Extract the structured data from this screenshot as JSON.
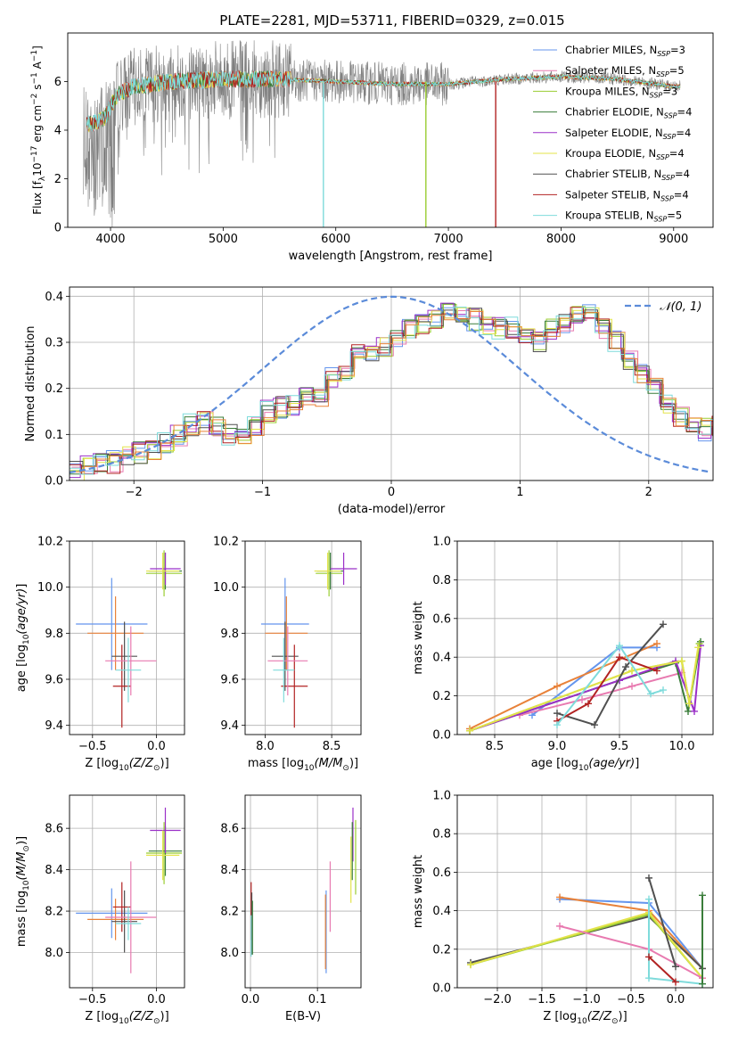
{
  "figure_title": "PLATE=2281, MJD=53711, FIBERID=0329, z=0.015",
  "colors": {
    "Chabrier MILES": "#6495ed",
    "Salpeter MILES": "#e87ab0",
    "Kroupa MILES": "#9acd32",
    "Chabrier ELODIE": "#3a7d3a",
    "Salpeter ELODIE": "#9b30c8",
    "Kroupa ELODIE": "#e3e34a",
    "Chabrier STELIB": "#505050",
    "Salpeter STELIB": "#b22222",
    "Kroupa STELIB": "#7fdbdb",
    "Kroupa MILES (orange)": "#e8823a",
    "data": "#808080",
    "gauss": "#5b8bd9"
  },
  "chart_data": [
    {
      "id": "spectrum",
      "type": "line",
      "title": "PLATE=2281, MJD=53711, FIBERID=0329, z=0.015",
      "xlabel": "wavelength [Angstrom, rest frame]",
      "ylabel_parts": {
        "a": "Flux [f",
        "b": "λ",
        "c": "10",
        "d": "−17",
        "e": " erg cm",
        "f": "−2",
        "g": " s",
        "h": "−1",
        "i": " A",
        "j": "−1",
        "k": "]"
      },
      "xlim": [
        3620,
        9350
      ],
      "ylim": [
        0,
        8
      ],
      "xticks": [
        4000,
        5000,
        6000,
        7000,
        8000,
        9000
      ],
      "yticks": [
        0,
        2,
        4,
        6
      ],
      "grid": false,
      "legend_position": "top-right",
      "legend": [
        {
          "name": "Chabrier MILES",
          "n": "3",
          "color": "#6495ed"
        },
        {
          "name": "Salpeter MILES",
          "n": "5",
          "color": "#e87ab0"
        },
        {
          "name": "Kroupa MILES",
          "n": "3",
          "color": "#9acd32"
        },
        {
          "name": "Chabrier ELODIE",
          "n": "4",
          "color": "#3a7d3a"
        },
        {
          "name": "Salpeter ELODIE",
          "n": "4",
          "color": "#9b30c8"
        },
        {
          "name": "Kroupa ELODIE",
          "n": "4",
          "color": "#e3e34a"
        },
        {
          "name": "Chabrier STELIB",
          "n": "4",
          "color": "#505050"
        },
        {
          "name": "Salpeter STELIB",
          "n": "4",
          "color": "#b22222"
        },
        {
          "name": "Kroupa STELIB",
          "n": "5",
          "color": "#7fdbdb"
        }
      ],
      "legend_sub": "SSP",
      "continuum_model": [
        [
          3760,
          4.2
        ],
        [
          3850,
          4.3
        ],
        [
          3950,
          4.5
        ],
        [
          4050,
          5.4
        ],
        [
          4200,
          5.8
        ],
        [
          4500,
          6.0
        ],
        [
          5000,
          6.1
        ],
        [
          5500,
          6.1
        ],
        [
          6000,
          6.0
        ],
        [
          6500,
          5.9
        ],
        [
          7000,
          5.9
        ],
        [
          7500,
          6.1
        ],
        [
          8000,
          6.2
        ],
        [
          8500,
          6.1
        ],
        [
          9000,
          5.8
        ],
        [
          9060,
          5.8
        ]
      ],
      "sky_drops": [
        {
          "x": 5890,
          "color": "#7fdbdb"
        },
        {
          "x": 6800,
          "color": "#9acd32"
        },
        {
          "x": 7420,
          "color": "#b22222"
        }
      ]
    },
    {
      "id": "residual_hist",
      "type": "bar",
      "xlabel": "(data-model)/error",
      "ylabel": "Normed distribution",
      "xlim": [
        -2.5,
        2.5
      ],
      "ylim": [
        0,
        0.42
      ],
      "xticks": [
        -2,
        -1,
        0,
        1,
        2
      ],
      "yticks": [
        0.0,
        0.1,
        0.2,
        0.3,
        0.4
      ],
      "grid": true,
      "legend_position": "top-right",
      "legend": [
        {
          "name": "𝒩(0, 1)",
          "style": "dashed",
          "color": "#5b8bd9"
        }
      ],
      "bin_width": 0.1,
      "base_profile": [
        0.02,
        0.03,
        0.035,
        0.04,
        0.05,
        0.06,
        0.07,
        0.08,
        0.1,
        0.12,
        0.13,
        0.12,
        0.1,
        0.1,
        0.12,
        0.15,
        0.16,
        0.16,
        0.18,
        0.18,
        0.22,
        0.24,
        0.27,
        0.28,
        0.29,
        0.31,
        0.33,
        0.34,
        0.35,
        0.37,
        0.36,
        0.35,
        0.34,
        0.33,
        0.33,
        0.32,
        0.3,
        0.33,
        0.34,
        0.36,
        0.37,
        0.33,
        0.3,
        0.26,
        0.23,
        0.2,
        0.17,
        0.14,
        0.12,
        0.11,
        0.12,
        0.13,
        0.12,
        0.1,
        0.09,
        0.09,
        0.08,
        0.07,
        0.05,
        0.04
      ],
      "profile_x_start": -2.5
    },
    {
      "id": "age_vs_Z",
      "type": "scatter",
      "xlabel": "Z [log10(Z/Z⊙)]",
      "ylabel": "age  [log10(age/yr)]",
      "xlim": [
        -0.68,
        0.22
      ],
      "ylim": [
        9.36,
        10.2
      ],
      "xticks": [
        -0.5,
        0.0
      ],
      "yticks": [
        9.4,
        9.6,
        9.8,
        10.0,
        10.2
      ],
      "grid": true,
      "points": [
        {
          "color": "#6495ed",
          "x": -0.35,
          "y": 9.84,
          "xerr": 0.28,
          "yerr": 0.2
        },
        {
          "color": "#e8823a",
          "x": -0.32,
          "y": 9.8,
          "xerr": 0.22,
          "yerr": 0.16
        },
        {
          "color": "#9acd32",
          "x": 0.06,
          "y": 10.06,
          "xerr": 0.14,
          "yerr": 0.1
        },
        {
          "color": "#3a7d3a",
          "x": 0.07,
          "y": 10.07,
          "xerr": 0.13,
          "yerr": 0.08
        },
        {
          "color": "#9b30c8",
          "x": 0.07,
          "y": 10.08,
          "xerr": 0.12,
          "yerr": 0.07
        },
        {
          "color": "#e3e34a",
          "x": 0.05,
          "y": 10.07,
          "xerr": 0.13,
          "yerr": 0.08
        },
        {
          "color": "#505050",
          "x": -0.25,
          "y": 9.7,
          "xerr": 0.1,
          "yerr": 0.15
        },
        {
          "color": "#b22222",
          "x": -0.27,
          "y": 9.57,
          "xerr": 0.07,
          "yerr": 0.18
        },
        {
          "color": "#e87ab0",
          "x": -0.2,
          "y": 9.68,
          "xerr": 0.2,
          "yerr": 0.15
        },
        {
          "color": "#7fdbdb",
          "x": -0.22,
          "y": 9.64,
          "xerr": 0.1,
          "yerr": 0.14
        }
      ]
    },
    {
      "id": "age_vs_mass",
      "type": "scatter",
      "xlabel": "mass [log10(M/M⊙)]",
      "ylabel": "",
      "xlim": [
        7.85,
        8.72
      ],
      "ylim": [
        9.36,
        10.2
      ],
      "xticks": [
        8.0,
        8.5
      ],
      "yticks": [
        9.4,
        9.6,
        9.8,
        10.0,
        10.2
      ],
      "grid": true,
      "points": [
        {
          "color": "#6495ed",
          "x": 8.15,
          "y": 9.84,
          "xerr": 0.18,
          "yerr": 0.2
        },
        {
          "color": "#e8823a",
          "x": 8.16,
          "y": 9.8,
          "xerr": 0.16,
          "yerr": 0.16
        },
        {
          "color": "#9acd32",
          "x": 8.48,
          "y": 10.06,
          "xerr": 0.1,
          "yerr": 0.1
        },
        {
          "color": "#3a7d3a",
          "x": 8.49,
          "y": 10.07,
          "xerr": 0.1,
          "yerr": 0.08
        },
        {
          "color": "#9b30c8",
          "x": 8.59,
          "y": 10.08,
          "xerr": 0.1,
          "yerr": 0.07
        },
        {
          "color": "#e3e34a",
          "x": 8.47,
          "y": 10.07,
          "xerr": 0.1,
          "yerr": 0.08
        },
        {
          "color": "#505050",
          "x": 8.15,
          "y": 9.7,
          "xerr": 0.1,
          "yerr": 0.15
        },
        {
          "color": "#b22222",
          "x": 8.22,
          "y": 9.57,
          "xerr": 0.1,
          "yerr": 0.18
        },
        {
          "color": "#e87ab0",
          "x": 8.17,
          "y": 9.68,
          "xerr": 0.15,
          "yerr": 0.15
        },
        {
          "color": "#7fdbdb",
          "x": 8.14,
          "y": 9.64,
          "xerr": 0.08,
          "yerr": 0.14
        }
      ]
    },
    {
      "id": "massweight_vs_age",
      "type": "line",
      "xlabel": "age  [log10(age/yr)]",
      "ylabel": "mass weight",
      "xlim": [
        8.2,
        10.25
      ],
      "ylim": [
        0,
        1.0
      ],
      "xticks": [
        8.5,
        9.0,
        9.5,
        10.0
      ],
      "yticks": [
        0.0,
        0.2,
        0.4,
        0.6,
        0.8,
        1.0
      ],
      "grid": true,
      "series": [
        {
          "color": "#6495ed",
          "x": [
            8.8,
            9.5,
            9.8
          ],
          "y": [
            0.1,
            0.45,
            0.45
          ]
        },
        {
          "color": "#e87ab0",
          "x": [
            8.7,
            9.2,
            9.6,
            10.0
          ],
          "y": [
            0.1,
            0.18,
            0.25,
            0.32
          ]
        },
        {
          "color": "#e8823a",
          "x": [
            8.3,
            9.0,
            9.8
          ],
          "y": [
            0.03,
            0.25,
            0.47
          ]
        },
        {
          "color": "#3a7d3a",
          "x": [
            8.3,
            9.5,
            9.95,
            10.05,
            10.15
          ],
          "y": [
            0.02,
            0.28,
            0.37,
            0.12,
            0.48
          ]
        },
        {
          "color": "#9b30c8",
          "x": [
            8.3,
            9.5,
            9.95,
            10.1,
            10.15
          ],
          "y": [
            0.02,
            0.28,
            0.38,
            0.12,
            0.46
          ]
        },
        {
          "color": "#9acd32",
          "x": [
            8.3,
            9.6,
            10.0,
            10.06,
            10.14
          ],
          "y": [
            0.02,
            0.33,
            0.38,
            0.16,
            0.47
          ]
        },
        {
          "color": "#e3e34a",
          "x": [
            8.3,
            9.6,
            10.0,
            10.06,
            10.13
          ],
          "y": [
            0.02,
            0.33,
            0.38,
            0.16,
            0.45
          ]
        },
        {
          "color": "#505050",
          "x": [
            9.0,
            9.3,
            9.55,
            9.85
          ],
          "y": [
            0.11,
            0.05,
            0.35,
            0.57
          ]
        },
        {
          "color": "#b22222",
          "x": [
            9.0,
            9.25,
            9.5,
            9.8
          ],
          "y": [
            0.07,
            0.16,
            0.4,
            0.33
          ]
        },
        {
          "color": "#7fdbdb",
          "x": [
            9.0,
            9.5,
            9.75,
            9.85
          ],
          "y": [
            0.05,
            0.46,
            0.21,
            0.23
          ]
        }
      ]
    },
    {
      "id": "mass_vs_Z",
      "type": "scatter",
      "xlabel": "Z [log10(Z/Z⊙)]",
      "ylabel": "mass [log10(M/M⊙)]",
      "xlim": [
        -0.68,
        0.22
      ],
      "ylim": [
        7.83,
        8.76
      ],
      "xticks": [
        -0.5,
        0.0
      ],
      "yticks": [
        8.0,
        8.2,
        8.4,
        8.6
      ],
      "grid": true,
      "points": [
        {
          "color": "#6495ed",
          "x": -0.35,
          "y": 8.19,
          "xerr": 0.28,
          "yerr": 0.12
        },
        {
          "color": "#e8823a",
          "x": -0.32,
          "y": 8.16,
          "xerr": 0.22,
          "yerr": 0.1
        },
        {
          "color": "#9acd32",
          "x": 0.06,
          "y": 8.48,
          "xerr": 0.14,
          "yerr": 0.15
        },
        {
          "color": "#3a7d3a",
          "x": 0.07,
          "y": 8.49,
          "xerr": 0.13,
          "yerr": 0.12
        },
        {
          "color": "#9b30c8",
          "x": 0.07,
          "y": 8.59,
          "xerr": 0.12,
          "yerr": 0.11
        },
        {
          "color": "#e3e34a",
          "x": 0.05,
          "y": 8.47,
          "xerr": 0.13,
          "yerr": 0.12
        },
        {
          "color": "#505050",
          "x": -0.25,
          "y": 8.15,
          "xerr": 0.1,
          "yerr": 0.15
        },
        {
          "color": "#b22222",
          "x": -0.27,
          "y": 8.22,
          "xerr": 0.07,
          "yerr": 0.12
        },
        {
          "color": "#e87ab0",
          "x": -0.2,
          "y": 8.17,
          "xerr": 0.2,
          "yerr": 0.27
        },
        {
          "color": "#7fdbdb",
          "x": -0.22,
          "y": 8.14,
          "xerr": 0.1,
          "yerr": 0.08
        }
      ]
    },
    {
      "id": "mass_vs_ebv",
      "type": "scatter",
      "xlabel": "E(B-V)",
      "ylabel": "",
      "xlim": [
        -0.008,
        0.165
      ],
      "ylim": [
        7.83,
        8.76
      ],
      "xticks": [
        0.0,
        0.1
      ],
      "yticks": [
        8.0,
        8.2,
        8.4,
        8.6
      ],
      "grid": true,
      "points": [
        {
          "color": "#b22222",
          "x": 0.001,
          "y": 8.2,
          "xerr": 0,
          "yerr": 0.14
        },
        {
          "color": "#505050",
          "x": 0.002,
          "y": 8.14,
          "xerr": 0,
          "yerr": 0.15
        },
        {
          "color": "#3a7d3a",
          "x": 0.003,
          "y": 8.12,
          "xerr": 0,
          "yerr": 0.13
        },
        {
          "color": "#7fdbdb",
          "x": 0.001,
          "y": 8.08,
          "xerr": 0,
          "yerr": 0.1
        },
        {
          "color": "#6495ed",
          "x": 0.113,
          "y": 8.1,
          "xerr": 0,
          "yerr": 0.2
        },
        {
          "color": "#e8823a",
          "x": 0.112,
          "y": 8.1,
          "xerr": 0,
          "yerr": 0.18
        },
        {
          "color": "#e87ab0",
          "x": 0.119,
          "y": 8.27,
          "xerr": 0,
          "yerr": 0.17
        },
        {
          "color": "#9b30c8",
          "x": 0.153,
          "y": 8.57,
          "xerr": 0,
          "yerr": 0.13
        },
        {
          "color": "#3a7d3a",
          "x": 0.152,
          "y": 8.49,
          "xerr": 0,
          "yerr": 0.14
        },
        {
          "color": "#e3e34a",
          "x": 0.15,
          "y": 8.4,
          "xerr": 0,
          "yerr": 0.16
        },
        {
          "color": "#9acd32",
          "x": 0.157,
          "y": 8.46,
          "xerr": 0,
          "yerr": 0.18
        }
      ]
    },
    {
      "id": "massweight_vs_Z",
      "type": "line",
      "xlabel": "Z [log10(Z/Z⊙)]",
      "ylabel": "mass weight",
      "xlim": [
        -2.45,
        0.42
      ],
      "ylim": [
        0,
        1.0
      ],
      "xticks": [
        -2.0,
        -1.5,
        -1.0,
        -0.5,
        0.0
      ],
      "yticks": [
        0.0,
        0.2,
        0.4,
        0.6,
        0.8,
        1.0
      ],
      "grid": true,
      "series": [
        {
          "color": "#6495ed",
          "x": [
            -1.3,
            -0.3,
            0.3
          ],
          "y": [
            0.46,
            0.44,
            0.1
          ]
        },
        {
          "color": "#e8823a",
          "x": [
            -1.3,
            -0.3,
            0.3
          ],
          "y": [
            0.47,
            0.4,
            0.1
          ]
        },
        {
          "color": "#505050",
          "x": [
            -2.3,
            -0.3,
            0.3
          ],
          "y": [
            0.13,
            0.37,
            0.1
          ]
        },
        {
          "color": "#9acd32",
          "x": [
            -2.3,
            -0.3,
            0.3
          ],
          "y": [
            0.12,
            0.38,
            0.05
          ]
        },
        {
          "color": "#e3e34a",
          "x": [
            -2.3,
            -0.3,
            0.3
          ],
          "y": [
            0.12,
            0.39,
            0.05
          ]
        },
        {
          "color": "#e87ab0",
          "x": [
            -1.3,
            -0.3,
            0.3
          ],
          "y": [
            0.32,
            0.2,
            0.05
          ]
        },
        {
          "color": "#7fdbdb",
          "x": [
            -0.3,
            -0.3,
            0.3
          ],
          "y": [
            0.46,
            0.05,
            0.02
          ]
        },
        {
          "color": "#505050",
          "x": [
            -0.3,
            0.0
          ],
          "y": [
            0.57,
            0.11
          ]
        },
        {
          "color": "#b22222",
          "x": [
            -0.3,
            0.0
          ],
          "y": [
            0.16,
            0.03
          ]
        },
        {
          "color": "#3a7d3a",
          "x": [
            0.3,
            0.3
          ],
          "y": [
            0.48,
            0.02
          ]
        }
      ]
    }
  ]
}
